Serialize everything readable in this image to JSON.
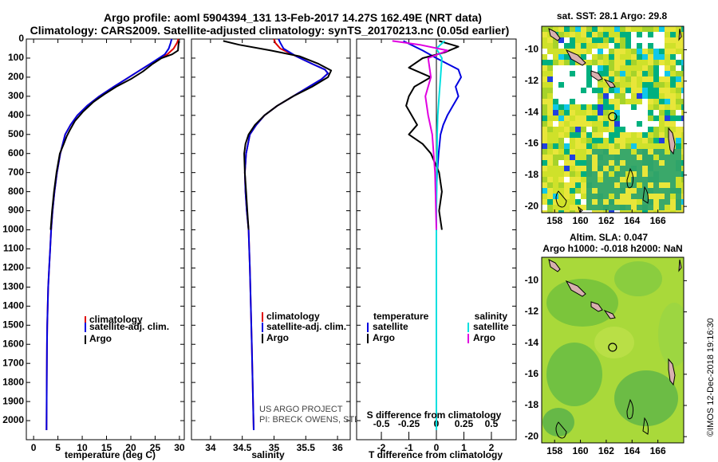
{
  "header": {
    "line1": "Argo profile: aoml 5904394_131 13-Feb-2017 14.27S 162.49E (NRT data)",
    "line2": "Climatology: CARS2009. Satellite-adjusted climatology: synTS_20170213.nc (0.05d earlier)"
  },
  "colors": {
    "climatology": "#e00000",
    "satellite": "#0000e0",
    "argo": "#000000",
    "sal_satellite": "#00e0e0",
    "sal_argo": "#e000e0"
  },
  "chart_data": [
    {
      "type": "line",
      "name": "temperature",
      "xlabel": "temperature (deg C)",
      "ylabel": "",
      "xlim": [
        -1.5,
        31
      ],
      "ylim": [
        2100,
        0
      ],
      "xticks": [
        0,
        5,
        10,
        15,
        20,
        25,
        30
      ],
      "yticks": [
        0,
        100,
        200,
        300,
        400,
        500,
        600,
        700,
        800,
        900,
        1000,
        1100,
        1200,
        1300,
        1400,
        1500,
        1600,
        1700,
        1800,
        1900,
        2000
      ],
      "legend": [
        "climatology",
        "satellite-adj. clim.",
        "Argo"
      ],
      "series": [
        {
          "name": "climatology",
          "color": "#e00000",
          "x": [
            29.8,
            29.5,
            28.8,
            27.5,
            26.0,
            24.0,
            21.5,
            19.0,
            16.5,
            13.5,
            11.0,
            9.0,
            7.6,
            6.5,
            5.5,
            4.8,
            4.3,
            3.9,
            3.6,
            3.4,
            3.2,
            3.0,
            2.9,
            2.8,
            2.75,
            2.7,
            2.65
          ],
          "y": [
            0,
            20,
            50,
            80,
            100,
            130,
            170,
            210,
            250,
            300,
            350,
            400,
            450,
            500,
            600,
            700,
            800,
            900,
            1000,
            1100,
            1200,
            1300,
            1400,
            1500,
            1600,
            1800,
            2050
          ]
        },
        {
          "name": "satellite-adj. clim.",
          "color": "#0000e0",
          "x": [
            28.4,
            28.2,
            27.8,
            27.0,
            25.8,
            24.0,
            21.5,
            19.0,
            16.5,
            13.5,
            11.0,
            9.0,
            7.6,
            6.5,
            5.5,
            4.8,
            4.3,
            3.9,
            3.6,
            3.4,
            3.2,
            3.0,
            2.9,
            2.8,
            2.75,
            2.7,
            2.65
          ],
          "y": [
            0,
            20,
            50,
            80,
            100,
            130,
            170,
            210,
            250,
            300,
            350,
            400,
            450,
            500,
            600,
            700,
            800,
            900,
            1000,
            1100,
            1200,
            1300,
            1400,
            1500,
            1600,
            1800,
            2050
          ]
        },
        {
          "name": "Argo",
          "color": "#000000",
          "x": [
            29.9,
            29.8,
            29.7,
            28.5,
            26.3,
            24.5,
            22.5,
            20.0,
            17.0,
            14.5,
            12.3,
            10.2,
            8.5,
            7.4,
            6.8,
            6.2,
            5.4,
            4.7,
            4.2,
            3.8,
            3.5
          ],
          "y": [
            10,
            30,
            60,
            80,
            100,
            130,
            170,
            210,
            250,
            290,
            330,
            380,
            430,
            480,
            510,
            550,
            600,
            700,
            800,
            900,
            1000
          ]
        }
      ]
    },
    {
      "type": "line",
      "name": "salinity",
      "xlabel": "salinity",
      "xlim": [
        33.7,
        36.2
      ],
      "ylim": [
        2100,
        0
      ],
      "xticks": [
        34,
        34.5,
        35,
        35.5,
        36
      ],
      "legend": [
        "climatology",
        "satellite-adj. clim.",
        "Argo"
      ],
      "series": [
        {
          "name": "climatology",
          "color": "#e00000",
          "x": [
            35.0,
            35.02,
            35.1,
            35.35,
            35.6,
            35.8,
            35.85,
            35.75,
            35.55,
            35.3,
            35.05,
            34.85,
            34.72,
            34.62,
            34.56,
            34.54,
            34.55,
            34.57,
            34.6,
            34.62,
            34.65,
            34.68
          ],
          "y": [
            0,
            20,
            50,
            90,
            130,
            160,
            180,
            210,
            250,
            300,
            350,
            400,
            450,
            500,
            600,
            700,
            800,
            900,
            1000,
            1200,
            1600,
            2050
          ]
        },
        {
          "name": "satellite-adj. clim.",
          "color": "#0000e0",
          "x": [
            35.07,
            35.1,
            35.15,
            35.35,
            35.6,
            35.8,
            35.85,
            35.75,
            35.55,
            35.3,
            35.05,
            34.85,
            34.72,
            34.62,
            34.56,
            34.54,
            34.55,
            34.57,
            34.6,
            34.62,
            34.65,
            34.68
          ],
          "y": [
            0,
            20,
            50,
            90,
            130,
            160,
            180,
            210,
            250,
            300,
            350,
            400,
            450,
            500,
            600,
            700,
            800,
            900,
            1000,
            1200,
            1600,
            2050
          ]
        },
        {
          "name": "Argo",
          "color": "#000000",
          "x": [
            34.2,
            34.45,
            34.95,
            35.4,
            35.7,
            35.9,
            35.85,
            35.6,
            35.3,
            35.05,
            34.85,
            34.7,
            34.6,
            34.55,
            34.53,
            34.54,
            34.56,
            34.58,
            34.6
          ],
          "y": [
            10,
            30,
            60,
            90,
            130,
            165,
            200,
            250,
            300,
            350,
            400,
            450,
            500,
            550,
            600,
            700,
            800,
            900,
            1000
          ]
        }
      ]
    },
    {
      "type": "line",
      "name": "difference",
      "xlabel": "T difference from climatology",
      "title_top": "S difference from climatology",
      "xlim": [
        -2.9,
        2.9
      ],
      "ylim": [
        2100,
        0
      ],
      "xticks": [
        -2,
        -1,
        0,
        1,
        2
      ],
      "xtick_labels": [
        "-2",
        "-1",
        "0",
        "1",
        "2"
      ],
      "top_ticks": [
        -0.5,
        -0.25,
        0,
        0.25,
        0.5
      ],
      "top_tick_labels": [
        "-0.5",
        "-0.25",
        "0",
        "0.25",
        "0.5"
      ],
      "legend_left_title": "temperature",
      "legend_right_title": "salinity",
      "legend_left": [
        "satellite",
        "Argo"
      ],
      "legend_right": [
        "satellite",
        "Argo"
      ],
      "series": [
        {
          "name": "T satellite",
          "color": "#0000e0",
          "x": [
            -1.2,
            -0.5,
            0.0,
            0.4,
            0.8,
            0.9,
            0.7,
            0.8,
            0.6,
            0.4,
            0.25,
            0.15,
            0.08,
            0.03,
            0.0,
            0.0
          ],
          "y": [
            10,
            60,
            100,
            130,
            160,
            200,
            250,
            300,
            350,
            400,
            450,
            500,
            600,
            700,
            800,
            2050
          ]
        },
        {
          "name": "T Argo",
          "color": "#000000",
          "x": [
            0.1,
            0.8,
            0.3,
            -0.5,
            -1.0,
            -0.2,
            -0.8,
            -1.0,
            -1.1,
            -0.9,
            -0.7,
            -1.0,
            -0.5,
            -0.2,
            0.1,
            0.2,
            0.1,
            0.2
          ],
          "y": [
            10,
            40,
            70,
            100,
            150,
            200,
            250,
            300,
            350,
            400,
            450,
            500,
            550,
            600,
            700,
            800,
            900,
            1000
          ]
        },
        {
          "name": "S satellite",
          "color": "#00e0e0",
          "x": [
            0.3,
            0.0,
            0.2,
            0.15,
            0.1,
            0.05,
            0.03,
            0.02,
            0.0,
            0.0
          ],
          "y": [
            10,
            50,
            100,
            200,
            300,
            400,
            500,
            700,
            900,
            2050
          ]
        },
        {
          "name": "S Argo",
          "color": "#e000e0",
          "x": [
            -1.6,
            -0.6,
            0.4,
            -0.3,
            -0.2,
            -0.4,
            -0.3,
            -0.15,
            -0.05,
            0.0
          ],
          "y": [
            10,
            30,
            60,
            100,
            200,
            300,
            400,
            500,
            700,
            1000
          ]
        }
      ]
    },
    {
      "type": "heatmap",
      "name": "sst-map",
      "title": "sat. SST: 28.1 Argo: 29.8",
      "xlim": [
        157,
        168
      ],
      "ylim": [
        -20.4,
        -8.5
      ],
      "xticks": [
        158,
        160,
        162,
        164,
        166
      ],
      "yticks": [
        -10,
        -12,
        -14,
        -16,
        -18,
        -20
      ],
      "argo_position": [
        162.49,
        -14.27
      ]
    },
    {
      "type": "heatmap",
      "name": "sla-map",
      "title_line1": "Altim. SLA: 0.047",
      "title_line2": "Argo h1000: -0.018 h2000: NaN",
      "xlim": [
        157,
        168
      ],
      "ylim": [
        -20.4,
        -8.5
      ],
      "xticks": [
        158,
        160,
        162,
        164,
        166
      ],
      "yticks": [
        -10,
        -12,
        -14,
        -16,
        -18,
        -20
      ],
      "argo_position": [
        162.49,
        -14.27
      ]
    }
  ],
  "legend_labels": {
    "climatology": "climatology",
    "satellite_adj": "satellite-adj. clim.",
    "argo": "Argo",
    "temperature": "temperature",
    "salinity": "salinity",
    "satellite": "satellite"
  },
  "credits": {
    "project": "US ARGO PROJECT",
    "pi": "PI: BRECK OWENS, STEVE JAYNE, P.E. ROBBINS",
    "imos": "©IMOS 12-Dec-2018 19:16:30"
  }
}
